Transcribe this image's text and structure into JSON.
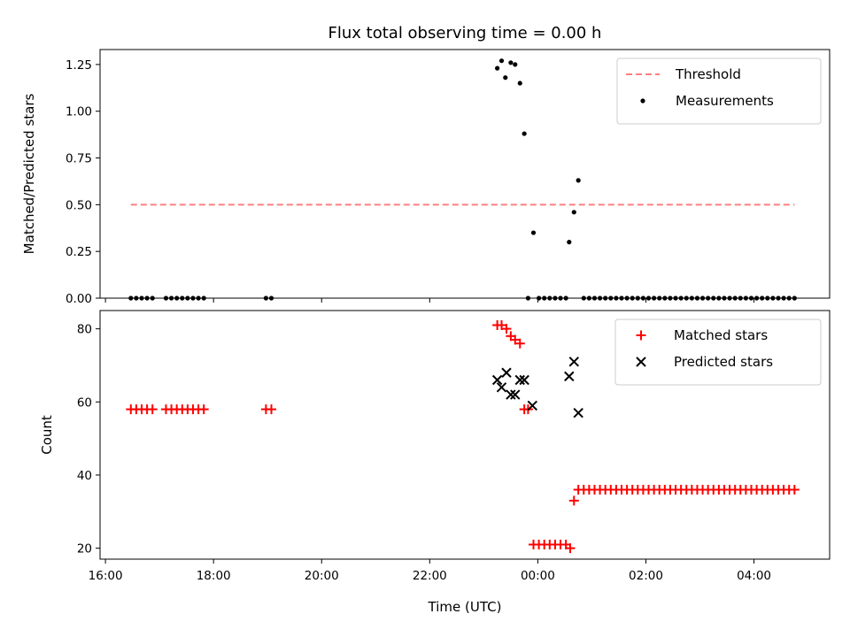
{
  "chart_data": [
    {
      "type": "scatter",
      "title": "Flux total observing time = 0.00 h",
      "xlabel": "",
      "ylabel": "Matched/Predicted stars",
      "xlim_hours": [
        15.9,
        29.4
      ],
      "ylim": [
        0,
        1.33
      ],
      "x_ticks": [
        16,
        18,
        20,
        22,
        24,
        26,
        28
      ],
      "y_ticks": [
        0,
        0.25,
        0.5,
        0.75,
        1.0,
        1.25
      ],
      "y_tick_labels": [
        "0.00",
        "0.25",
        "0.50",
        "0.75",
        "1.00",
        "1.25"
      ],
      "legend_position": "top-right",
      "threshold": {
        "name": "Threshold",
        "value": 0.5,
        "x_range": [
          16.47,
          28.75
        ],
        "color": "#ff7f7f",
        "style": "dashed"
      },
      "series": [
        {
          "name": "Measurements",
          "color": "#000000",
          "marker": "dot",
          "points": [
            [
              16.47,
              0
            ],
            [
              16.57,
              0
            ],
            [
              16.67,
              0
            ],
            [
              16.77,
              0
            ],
            [
              16.87,
              0
            ],
            [
              17.12,
              0
            ],
            [
              17.22,
              0
            ],
            [
              17.32,
              0
            ],
            [
              17.42,
              0
            ],
            [
              17.52,
              0
            ],
            [
              17.62,
              0
            ],
            [
              17.72,
              0
            ],
            [
              17.82,
              0
            ],
            [
              18.97,
              0
            ],
            [
              19.07,
              0
            ],
            [
              23.25,
              1.23
            ],
            [
              23.33,
              1.27
            ],
            [
              23.4,
              1.18
            ],
            [
              23.5,
              1.26
            ],
            [
              23.58,
              1.25
            ],
            [
              23.67,
              1.15
            ],
            [
              23.75,
              0.88
            ],
            [
              23.82,
              0
            ],
            [
              23.92,
              0.35
            ],
            [
              24.02,
              0
            ],
            [
              24.12,
              0
            ],
            [
              24.22,
              0
            ],
            [
              24.32,
              0
            ],
            [
              24.42,
              0
            ],
            [
              24.52,
              0
            ],
            [
              24.58,
              0.3
            ],
            [
              24.67,
              0.46
            ],
            [
              24.75,
              0.63
            ],
            [
              24.85,
              0
            ],
            [
              24.95,
              0
            ],
            [
              25.05,
              0
            ],
            [
              25.15,
              0
            ],
            [
              25.25,
              0
            ],
            [
              25.35,
              0
            ],
            [
              25.45,
              0
            ],
            [
              25.55,
              0
            ],
            [
              25.65,
              0
            ],
            [
              25.75,
              0
            ],
            [
              25.85,
              0
            ],
            [
              25.95,
              0
            ],
            [
              26.05,
              0
            ],
            [
              26.15,
              0
            ],
            [
              26.25,
              0
            ],
            [
              26.35,
              0
            ],
            [
              26.45,
              0
            ],
            [
              26.55,
              0
            ],
            [
              26.65,
              0
            ],
            [
              26.75,
              0
            ],
            [
              26.85,
              0
            ],
            [
              26.95,
              0
            ],
            [
              27.05,
              0
            ],
            [
              27.15,
              0
            ],
            [
              27.25,
              0
            ],
            [
              27.35,
              0
            ],
            [
              27.45,
              0
            ],
            [
              27.55,
              0
            ],
            [
              27.65,
              0
            ],
            [
              27.75,
              0
            ],
            [
              27.85,
              0
            ],
            [
              27.95,
              0
            ],
            [
              28.05,
              0
            ],
            [
              28.15,
              0
            ],
            [
              28.25,
              0
            ],
            [
              28.35,
              0
            ],
            [
              28.45,
              0
            ],
            [
              28.55,
              0
            ],
            [
              28.65,
              0
            ],
            [
              28.75,
              0
            ]
          ]
        }
      ]
    },
    {
      "type": "scatter",
      "title": "",
      "xlabel": "Time (UTC)",
      "ylabel": "Count",
      "xlim_hours": [
        15.9,
        29.4
      ],
      "ylim": [
        17,
        85
      ],
      "x_ticks": [
        16,
        18,
        20,
        22,
        24,
        26,
        28
      ],
      "x_tick_labels": [
        "16:00",
        "18:00",
        "20:00",
        "22:00",
        "00:00",
        "02:00",
        "04:00"
      ],
      "y_ticks": [
        20,
        40,
        60,
        80
      ],
      "y_tick_labels": [
        "20",
        "40",
        "60",
        "80"
      ],
      "legend_position": "top-right",
      "series": [
        {
          "name": "Matched stars",
          "color": "#ff0000",
          "marker": "plus",
          "points": [
            [
              16.47,
              58
            ],
            [
              16.57,
              58
            ],
            [
              16.67,
              58
            ],
            [
              16.77,
              58
            ],
            [
              16.87,
              58
            ],
            [
              17.12,
              58
            ],
            [
              17.22,
              58
            ],
            [
              17.32,
              58
            ],
            [
              17.42,
              58
            ],
            [
              17.52,
              58
            ],
            [
              17.62,
              58
            ],
            [
              17.72,
              58
            ],
            [
              17.82,
              58
            ],
            [
              18.97,
              58
            ],
            [
              19.07,
              58
            ],
            [
              23.25,
              81
            ],
            [
              23.33,
              81
            ],
            [
              23.42,
              80
            ],
            [
              23.5,
              78
            ],
            [
              23.58,
              77
            ],
            [
              23.67,
              76
            ],
            [
              23.75,
              58
            ],
            [
              23.82,
              58
            ],
            [
              23.92,
              21
            ],
            [
              24.02,
              21
            ],
            [
              24.12,
              21
            ],
            [
              24.22,
              21
            ],
            [
              24.32,
              21
            ],
            [
              24.42,
              21
            ],
            [
              24.52,
              21
            ],
            [
              24.6,
              20
            ],
            [
              24.67,
              33
            ],
            [
              24.75,
              36
            ],
            [
              24.85,
              36
            ],
            [
              24.95,
              36
            ],
            [
              25.05,
              36
            ],
            [
              25.15,
              36
            ],
            [
              25.25,
              36
            ],
            [
              25.35,
              36
            ],
            [
              25.45,
              36
            ],
            [
              25.55,
              36
            ],
            [
              25.65,
              36
            ],
            [
              25.75,
              36
            ],
            [
              25.85,
              36
            ],
            [
              25.95,
              36
            ],
            [
              26.05,
              36
            ],
            [
              26.15,
              36
            ],
            [
              26.25,
              36
            ],
            [
              26.35,
              36
            ],
            [
              26.45,
              36
            ],
            [
              26.55,
              36
            ],
            [
              26.65,
              36
            ],
            [
              26.75,
              36
            ],
            [
              26.85,
              36
            ],
            [
              26.95,
              36
            ],
            [
              27.05,
              36
            ],
            [
              27.15,
              36
            ],
            [
              27.25,
              36
            ],
            [
              27.35,
              36
            ],
            [
              27.45,
              36
            ],
            [
              27.55,
              36
            ],
            [
              27.65,
              36
            ],
            [
              27.75,
              36
            ],
            [
              27.85,
              36
            ],
            [
              27.95,
              36
            ],
            [
              28.05,
              36
            ],
            [
              28.15,
              36
            ],
            [
              28.25,
              36
            ],
            [
              28.35,
              36
            ],
            [
              28.45,
              36
            ],
            [
              28.55,
              36
            ],
            [
              28.65,
              36
            ],
            [
              28.75,
              36
            ]
          ]
        },
        {
          "name": "Predicted stars",
          "color": "#000000",
          "marker": "x",
          "points": [
            [
              23.25,
              66
            ],
            [
              23.33,
              64
            ],
            [
              23.42,
              68
            ],
            [
              23.5,
              62
            ],
            [
              23.58,
              62
            ],
            [
              23.67,
              66
            ],
            [
              23.75,
              66
            ],
            [
              23.9,
              59
            ],
            [
              24.58,
              67
            ],
            [
              24.67,
              71
            ],
            [
              24.75,
              57
            ]
          ]
        }
      ]
    }
  ]
}
